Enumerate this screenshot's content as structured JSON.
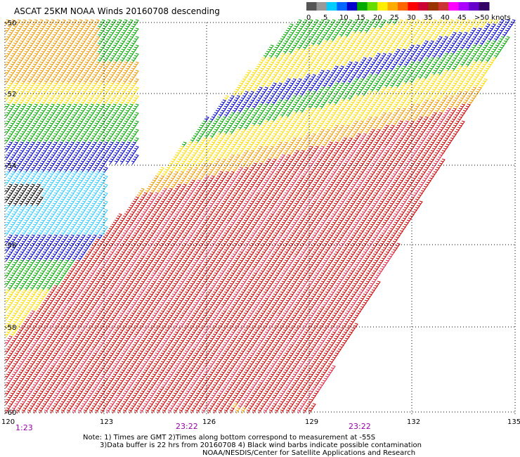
{
  "title": "ASCAT 25KM NOAA Winds 20160708 descending",
  "legend": {
    "labels": [
      "0",
      "5",
      "10",
      "15",
      "20",
      "25",
      "30",
      "35",
      "40",
      "45",
      ">50 knots"
    ],
    "colors": [
      "#555555",
      "#999999",
      "#00ccff",
      "#0066ff",
      "#0000cc",
      "#00aa00",
      "#66dd00",
      "#ffee00",
      "#ffaa00",
      "#ff6600",
      "#ff0000",
      "#cc0033",
      "#993300",
      "#cc3333",
      "#ff00ff",
      "#aa00ff",
      "#6600cc",
      "#330066"
    ]
  },
  "axes": {
    "lat_labels": [
      "-50",
      "-52",
      "-54",
      "-56",
      "-58",
      "-60"
    ],
    "lon_labels": [
      "120",
      "123",
      "126",
      "129",
      "132",
      "135"
    ]
  },
  "times": {
    "first": "1:23",
    "second": "23:22",
    "third": "23:22"
  },
  "notes": {
    "line1": "Note: 1) Times are GMT 2)Times along bottom correspond to measurement at -55S",
    "line2": "3)Data buffer is 22 hrs from 20160708 4) Black wind barbs indicate possible contamination",
    "line3": "NOAA/NESDIS/Center for Satellite Applications and Research"
  },
  "barb_colors": {
    "yellow": "#ffdd00",
    "orange": "#ee9900",
    "green": "#00aa00",
    "lime": "#66cc00",
    "blue": "#0000cc",
    "cyan": "#33ccff",
    "red": "#cc0000",
    "crimson": "#dd2244",
    "brown": "#bb7700",
    "black": "#000000"
  }
}
